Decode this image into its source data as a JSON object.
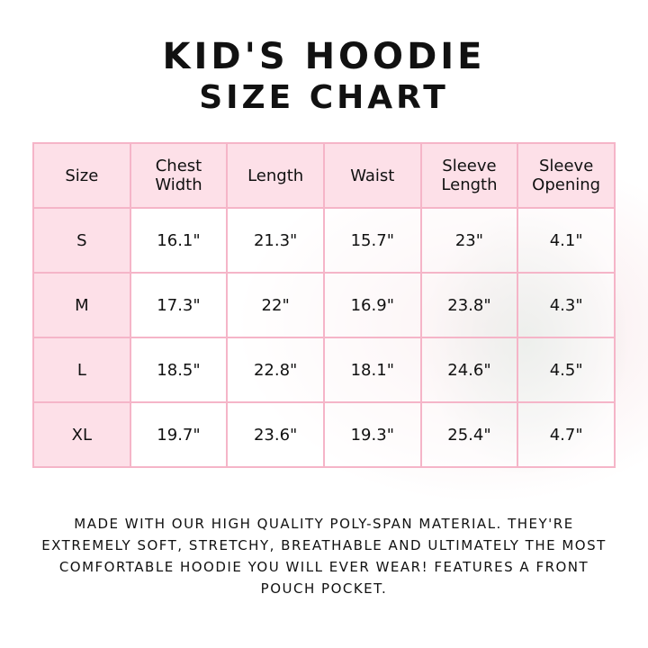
{
  "title": "KID'S HOODIE",
  "subtitle": "SIZE CHART",
  "table": {
    "headers": [
      "Size",
      "Chest Width",
      "Length",
      "Waist",
      "Sleeve Length",
      "Sleeve Opening"
    ],
    "rows": [
      [
        "S",
        "16.1\"",
        "21.3\"",
        "15.7\"",
        "23\"",
        "4.1\""
      ],
      [
        "M",
        "17.3\"",
        "22\"",
        "16.9\"",
        "23.8\"",
        "4.3\""
      ],
      [
        "L",
        "18.5\"",
        "22.8\"",
        "18.1\"",
        "24.6\"",
        "4.5\""
      ],
      [
        "XL",
        "19.7\"",
        "23.6\"",
        "19.3\"",
        "25.4\"",
        "4.7\""
      ]
    ]
  },
  "description": "Made with our high quality poly-span material. They're extremely soft, stretchy, breathable and ultimately the most comfortable hoodie you will ever wear! Features a front pouch pocket.",
  "colors": {
    "border": "#f5b5c8",
    "header_bg": "#fde0e8"
  }
}
